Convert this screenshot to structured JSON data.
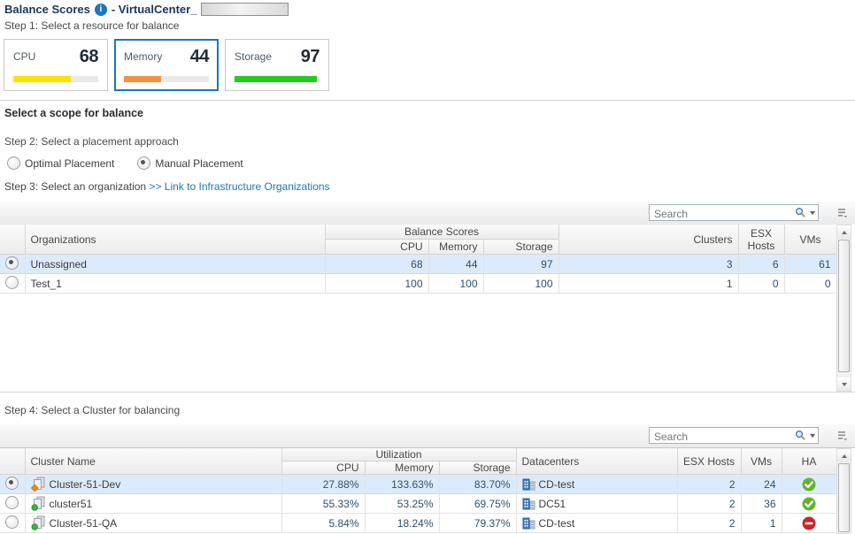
{
  "title": {
    "main": "Balance Scores",
    "suffix": "- VirtualCenter_"
  },
  "icons": {
    "info": "i"
  },
  "steps": {
    "step1": "Step 1: Select a resource for balance",
    "scope_heading": "Select a scope for balance",
    "step2": "Step 2: Select a placement approach",
    "step3": "Step 3: Select an organization",
    "step3_link": ">> Link to Infrastructure Organizations",
    "step4": "Step 4: Select a Cluster for balancing"
  },
  "resource_cards": [
    {
      "label": "CPU",
      "value": 68,
      "color": "#ffe200",
      "selected": false
    },
    {
      "label": "Memory",
      "value": 44,
      "color": "#f5913d",
      "selected": true
    },
    {
      "label": "Storage",
      "value": 97,
      "color": "#22cc22",
      "selected": false
    }
  ],
  "placement": {
    "options": [
      {
        "label": "Optimal Placement",
        "selected": false
      },
      {
        "label": "Manual Placement",
        "selected": true
      }
    ]
  },
  "search": {
    "placeholder": "Search"
  },
  "org_table": {
    "headers": {
      "organizations": "Organizations",
      "group": "Balance Scores",
      "cpu": "CPU",
      "memory": "Memory",
      "storage": "Storage",
      "clusters": "Clusters",
      "esx_hosts": "ESX Hosts",
      "vms": "VMs"
    },
    "rows": [
      {
        "selected": true,
        "name": "Unassigned",
        "cpu": "68",
        "memory": "44",
        "storage": "97",
        "clusters": "3",
        "esx_hosts": "6",
        "vms": "61"
      },
      {
        "selected": false,
        "name": "Test_1",
        "cpu": "100",
        "memory": "100",
        "storage": "100",
        "clusters": "1",
        "esx_hosts": "0",
        "vms": "0"
      }
    ]
  },
  "cluster_table": {
    "headers": {
      "cluster_name": "Cluster Name",
      "group": "Utilization",
      "cpu": "CPU",
      "memory": "Memory",
      "storage": "Storage",
      "datacenters": "Datacenters",
      "esx_hosts": "ESX Hosts",
      "vms": "VMs",
      "ha": "HA"
    },
    "rows": [
      {
        "selected": true,
        "status": "warning",
        "name": "Cluster-51-Dev",
        "cpu": "27.88%",
        "memory": "133.63%",
        "storage": "83.70%",
        "datacenter": "CD-test",
        "esx_hosts": "2",
        "vms": "24",
        "ha": "ok"
      },
      {
        "selected": false,
        "status": "ok",
        "name": "cluster51",
        "cpu": "55.33%",
        "memory": "53.25%",
        "storage": "69.75%",
        "datacenter": "DC51",
        "esx_hosts": "2",
        "vms": "36",
        "ha": "ok"
      },
      {
        "selected": false,
        "status": "ok",
        "name": "Cluster-51-QA",
        "cpu": "5.84%",
        "memory": "18.24%",
        "storage": "79.37%",
        "datacenter": "CD-test",
        "esx_hosts": "2",
        "vms": "1",
        "ha": "blocked"
      }
    ]
  },
  "colors": {
    "accent_blue": "#1a78bd",
    "link": "#1d78be",
    "selected_row": "#dcebfb",
    "ha_ok": "#63b32d",
    "ha_blocked": "#c9252c",
    "cluster_ok": "#3db53d",
    "cluster_warning": "#ef8d1f",
    "cpu_bar": "#ffe200",
    "memory_bar": "#f5913d",
    "storage_bar": "#22cc22"
  }
}
